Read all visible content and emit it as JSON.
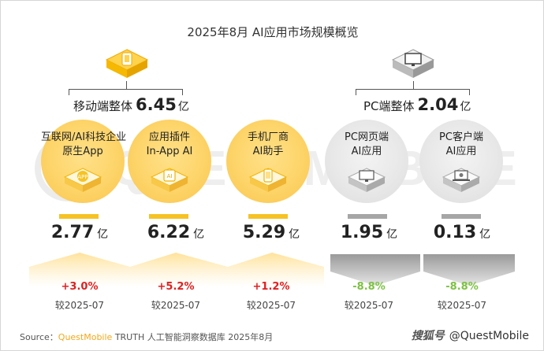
{
  "title": "2025年8月 AI应用市场规模概览",
  "watermark": "QUESTMOBILE",
  "colors": {
    "accent": "#f6c324",
    "up": "#e02020",
    "down": "#7dc243",
    "neutral": "#a6a6a6"
  },
  "groups": {
    "mobile": {
      "label": "移动端整体",
      "value": "6.45",
      "unit": "亿",
      "icon": "smartphone-icon"
    },
    "pc": {
      "label": "PC端整体",
      "value": "2.04",
      "unit": "亿",
      "icon": "desktop-monitor-icon"
    }
  },
  "items": [
    {
      "line1": "互联网/AI科技企业",
      "line2": "原生App",
      "value": "2.77",
      "unit": "亿",
      "change": "+3.0%",
      "compare": "较2025-07",
      "icon": "app-icon"
    },
    {
      "line1": "应用插件",
      "line2": "In-App AI",
      "value": "6.22",
      "unit": "亿",
      "change": "+5.2%",
      "compare": "较2025-07",
      "icon": "ai-plugin-icon"
    },
    {
      "line1": "手机厂商",
      "line2": "AI助手",
      "value": "5.29",
      "unit": "亿",
      "change": "+1.2%",
      "compare": "较2025-07",
      "icon": "phone-assistant-icon"
    },
    {
      "line1": "PC网页端",
      "line2": "AI应用",
      "value": "1.95",
      "unit": "亿",
      "change": "-8.8%",
      "compare": "较2025-07",
      "icon": "monitor-web-icon"
    },
    {
      "line1": "PC客户端",
      "line2": "AI应用",
      "value": "0.13",
      "unit": "亿",
      "change": "-8.8%",
      "compare": "较2025-07",
      "icon": "laptop-client-icon"
    }
  ],
  "source": {
    "prefix": "Source：",
    "brand": "QuestMobile",
    "text": "TRUTH 人工智能洞察数据库 2025年8月"
  },
  "credit": {
    "platform": "搜狐号",
    "handle": "@QuestMobile"
  }
}
